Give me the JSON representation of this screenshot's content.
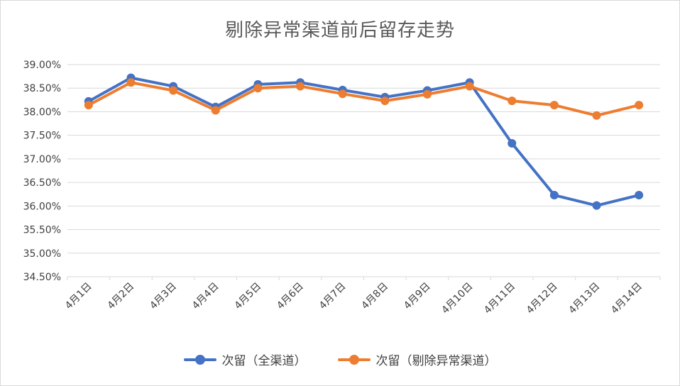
{
  "chart_data": {
    "type": "line",
    "title": "剔除异常渠道前后留存走势",
    "categories": [
      "4月1日",
      "4月2日",
      "4月3日",
      "4月4日",
      "4月5日",
      "4月6日",
      "4月7日",
      "4月8日",
      "4月9日",
      "4月10日",
      "4月11日",
      "4月12日",
      "4月13日",
      "4月14日"
    ],
    "y_ticks": [
      "34.50%",
      "35.00%",
      "35.50%",
      "36.00%",
      "36.50%",
      "37.00%",
      "37.50%",
      "38.00%",
      "38.50%",
      "39.00%"
    ],
    "ylim": [
      34.5,
      39.0
    ],
    "grid": true,
    "legend_position": "bottom",
    "series": [
      {
        "name": "次留（全渠道）",
        "color": "#4472c4",
        "values": [
          38.22,
          38.72,
          38.54,
          38.1,
          38.58,
          38.62,
          38.46,
          38.31,
          38.45,
          38.62,
          37.33,
          36.23,
          36.01,
          36.23
        ]
      },
      {
        "name": "次留（剔除异常渠道）",
        "color": "#ed7d31",
        "values": [
          38.14,
          38.62,
          38.45,
          38.03,
          38.5,
          38.54,
          38.38,
          38.23,
          38.37,
          38.54,
          38.23,
          38.14,
          37.92,
          38.14
        ]
      }
    ]
  }
}
